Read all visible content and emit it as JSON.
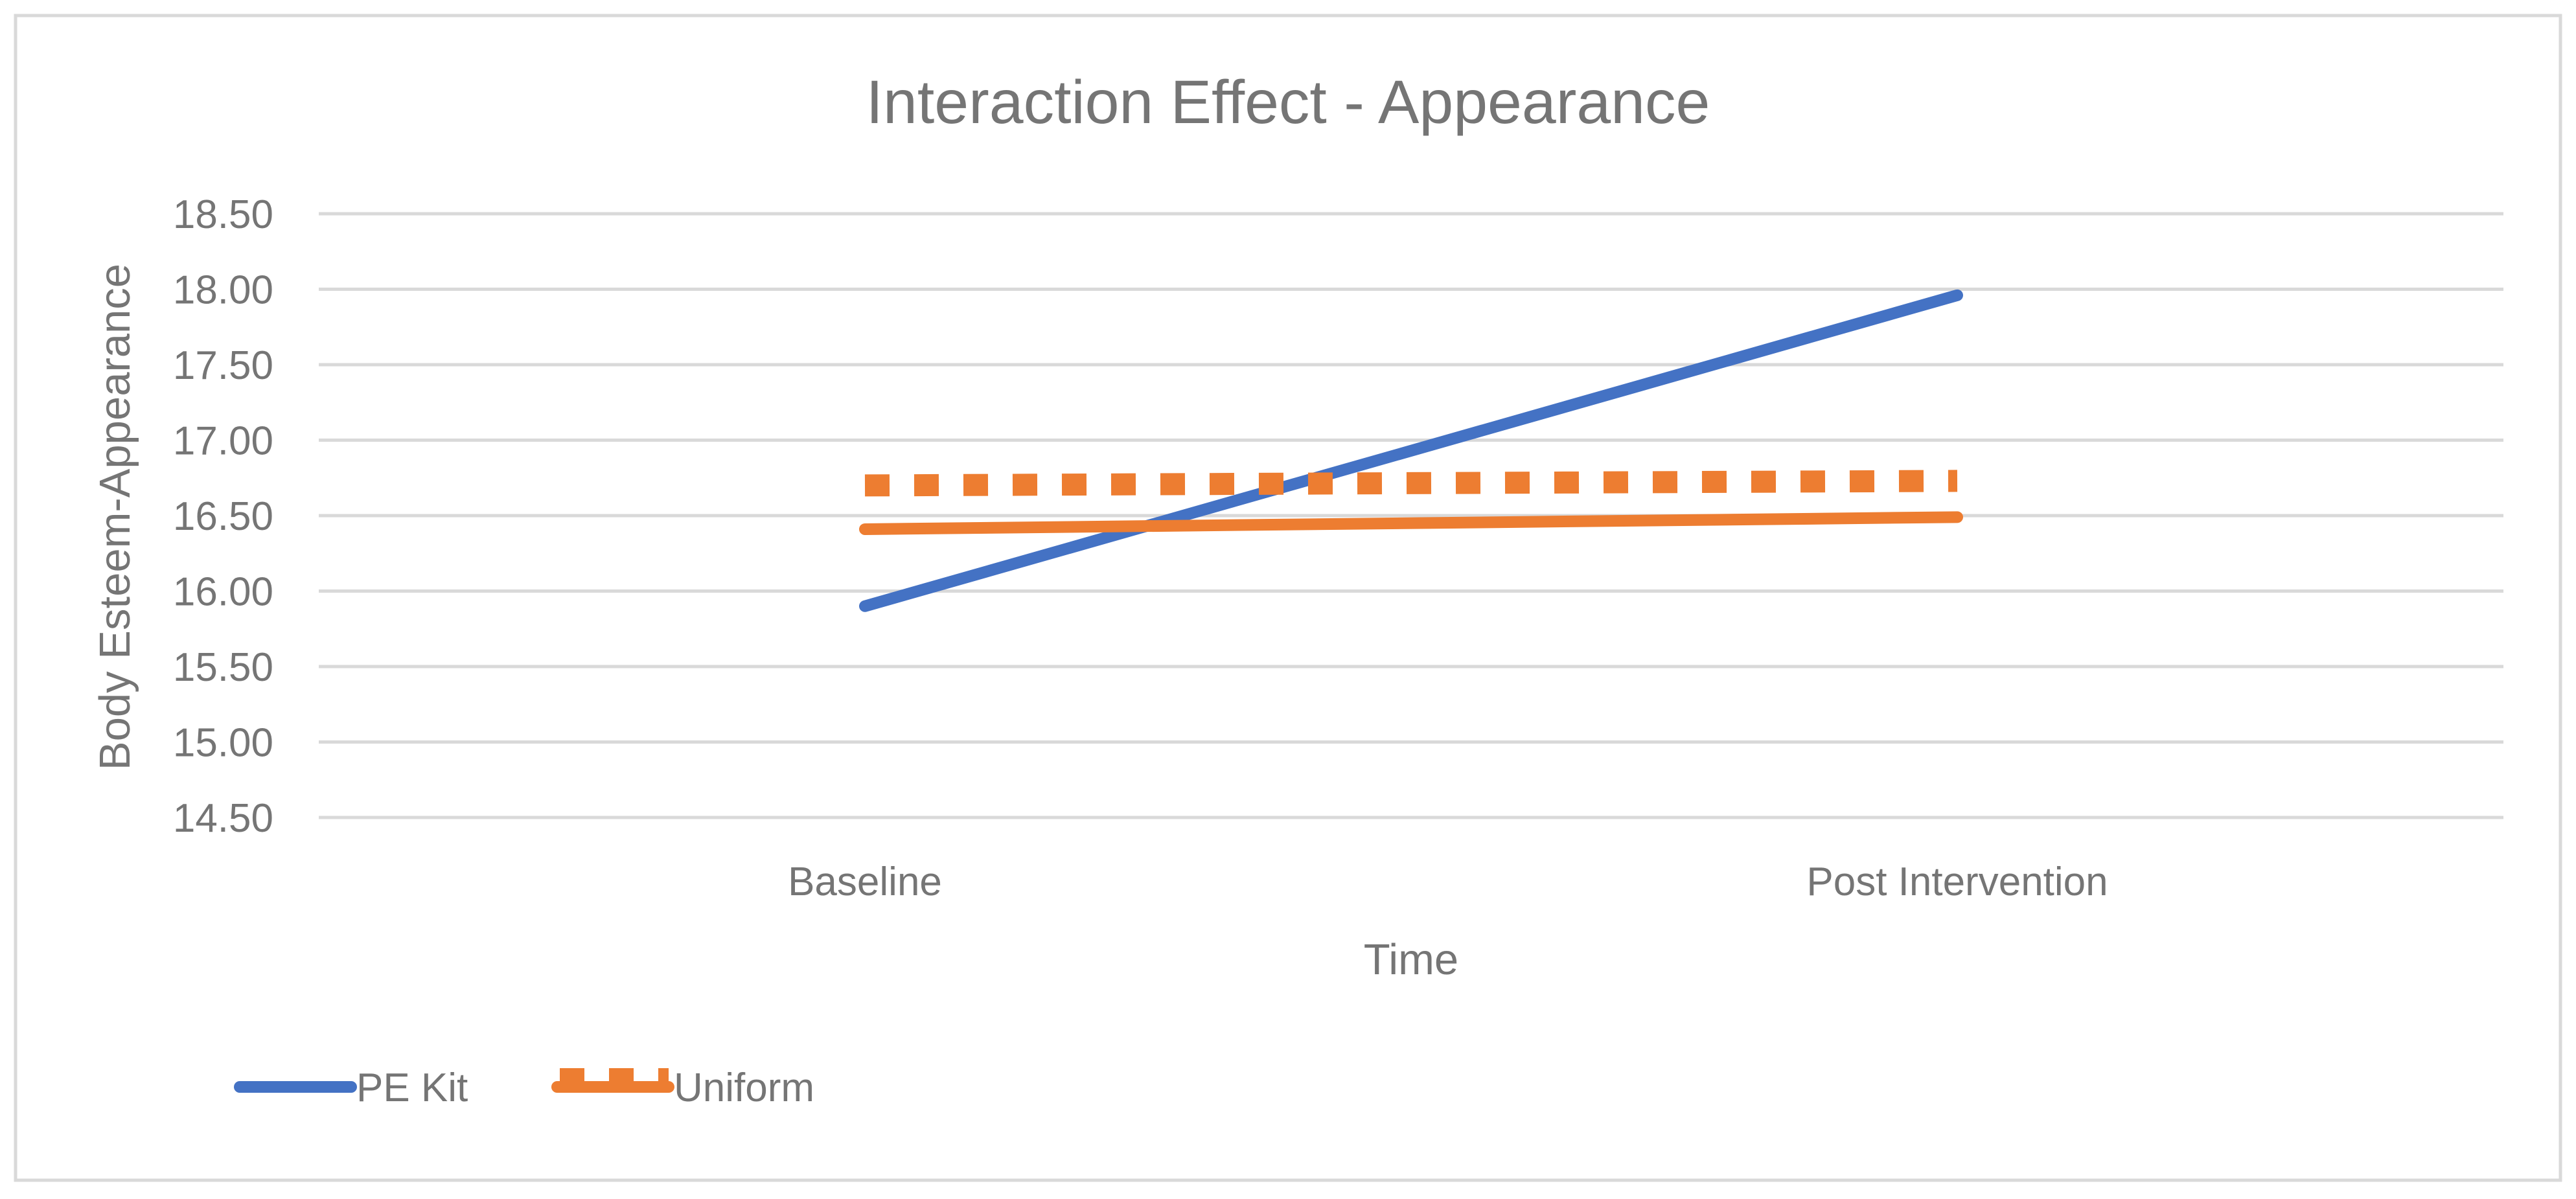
{
  "chart_data": {
    "type": "line",
    "title": "Interaction Effect - Appearance",
    "xlabel": "Time",
    "ylabel": "Body Esteem-Appearance",
    "categories": [
      "Baseline",
      "Post Intervention"
    ],
    "yticks": [
      "14.50",
      "15.00",
      "15.50",
      "16.00",
      "16.50",
      "17.00",
      "17.50",
      "18.00",
      "18.50"
    ],
    "ylim": [
      14.5,
      18.5
    ],
    "grid": true,
    "legend_position": "bottom-left",
    "series": [
      {
        "name": "PE Kit",
        "values": [
          15.9,
          17.96
        ],
        "color": "#4472C4",
        "style": "solid"
      },
      {
        "name": "Uniform",
        "values": [
          16.41,
          16.49
        ],
        "color": "#ED7D31",
        "style": "solid"
      },
      {
        "name": "",
        "values": [
          16.7,
          16.73
        ],
        "color": "#ED7D31",
        "style": "square-dot"
      }
    ],
    "legend": [
      {
        "label": "PE Kit",
        "series_index": 0
      },
      {
        "label": "Uniform",
        "series_index": 1
      }
    ]
  },
  "colors": {
    "gridline": "#D9D9D9",
    "border": "#D9D9D9",
    "text": "#757575"
  }
}
